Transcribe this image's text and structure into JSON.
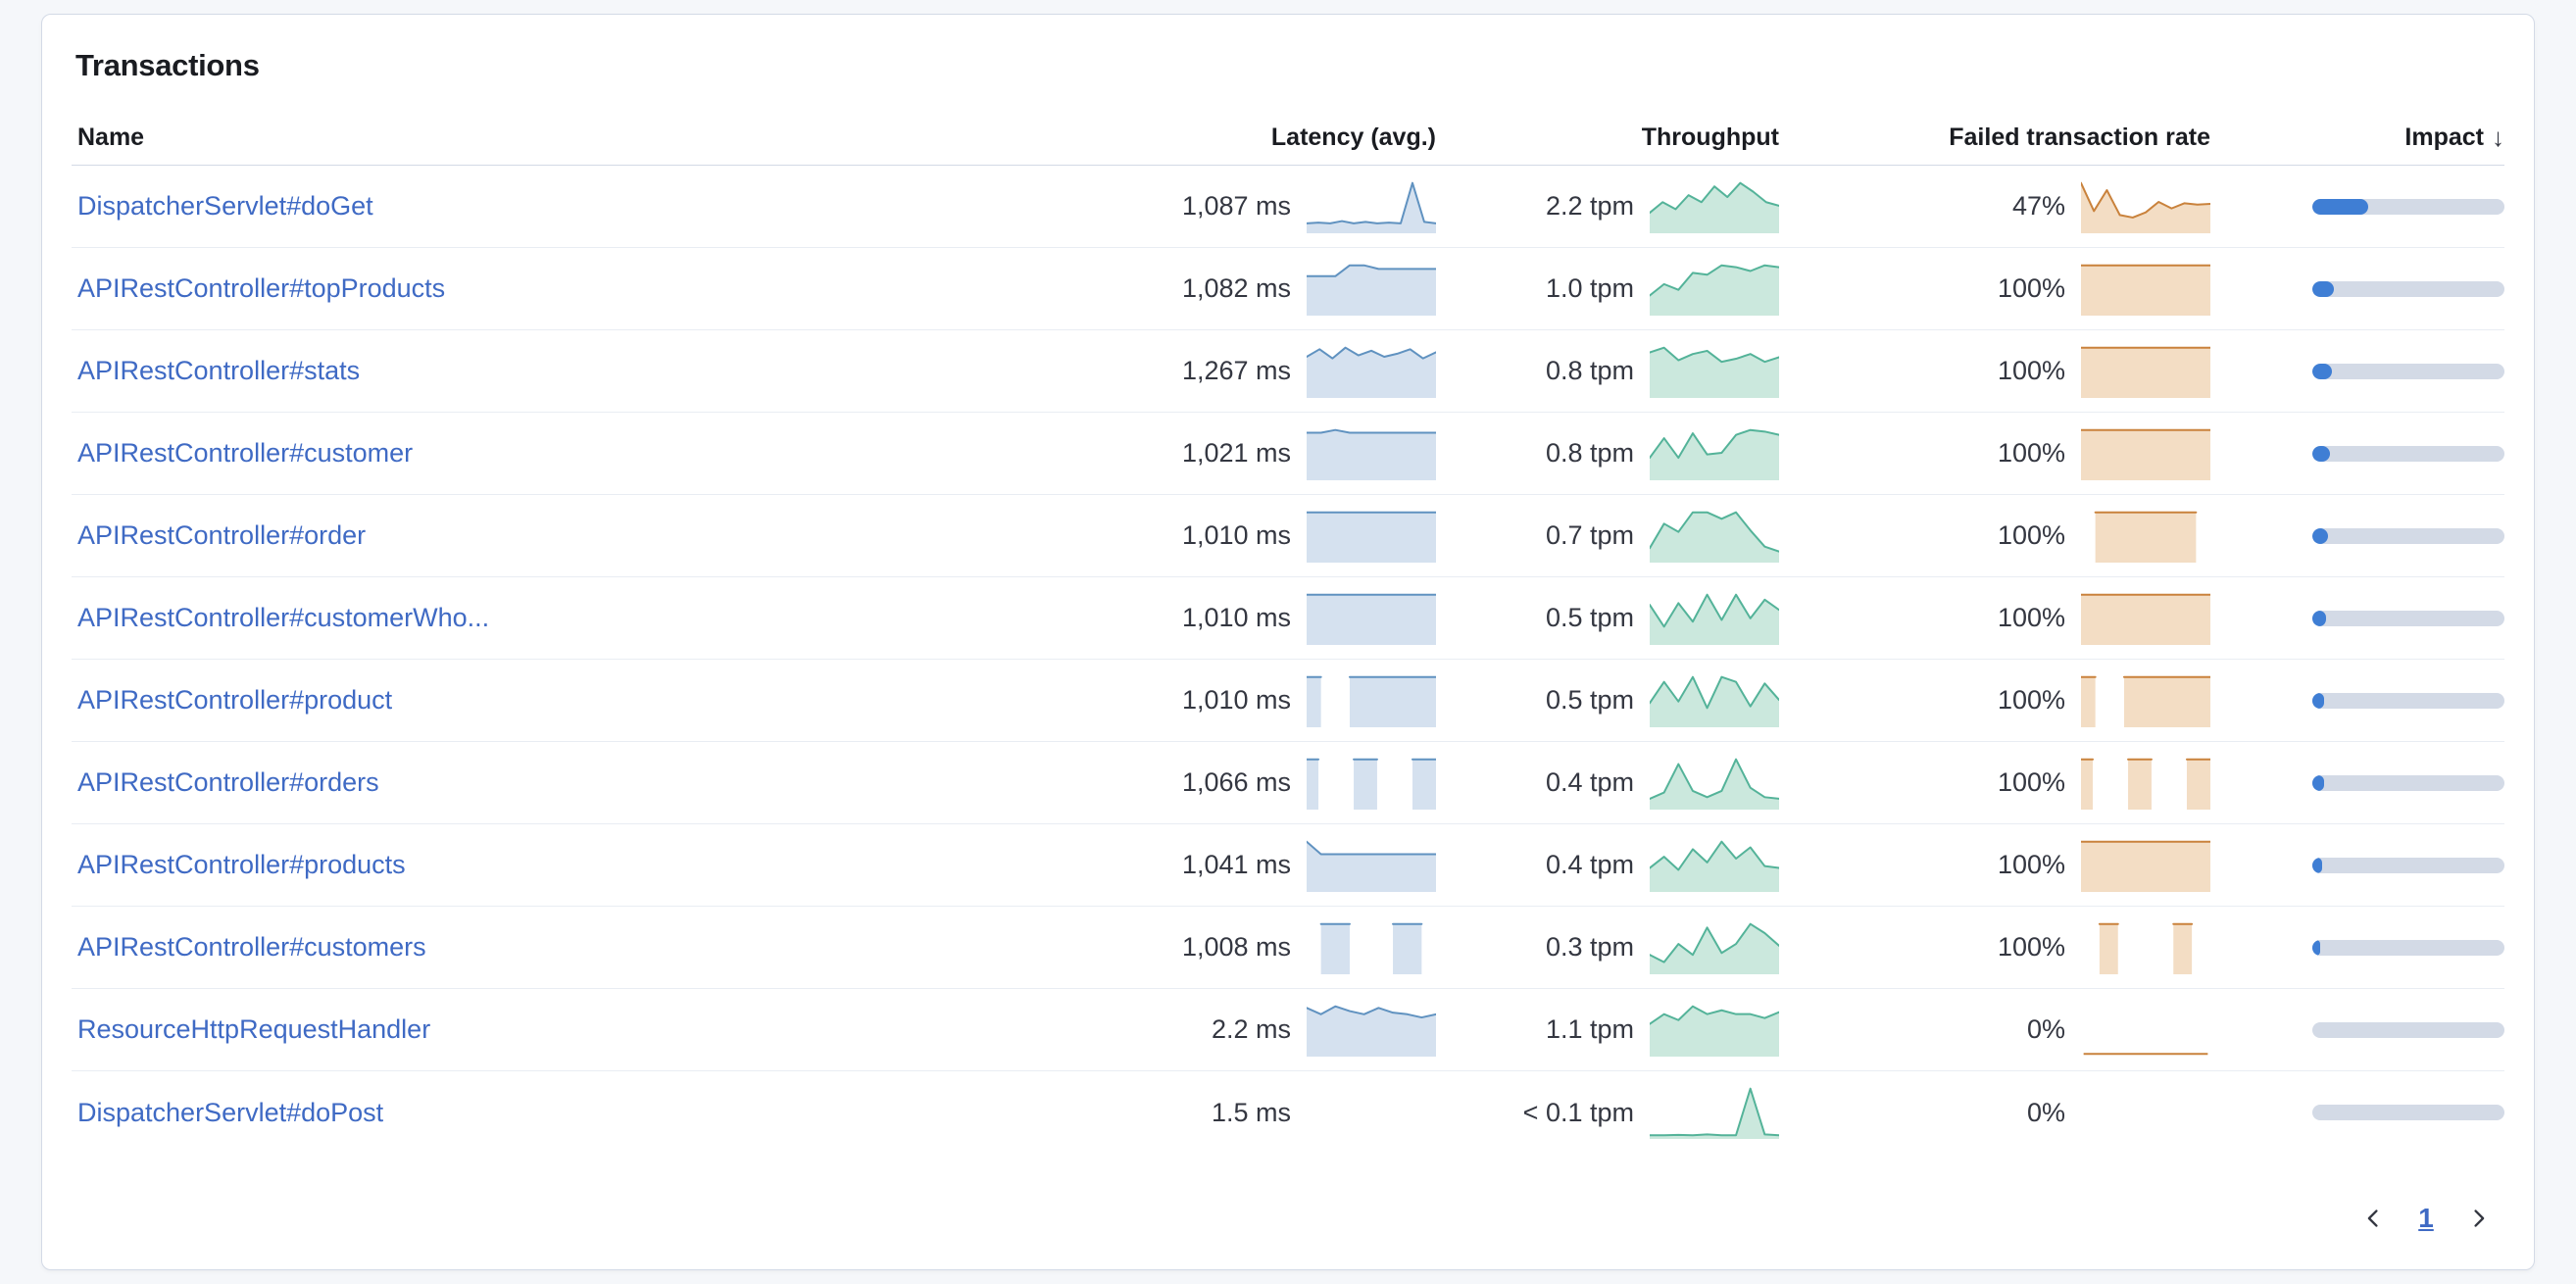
{
  "panel": {
    "title": "Transactions"
  },
  "table": {
    "columns": {
      "name": "Name",
      "latency": "Latency (avg.)",
      "throughput": "Throughput",
      "failed_rate": "Failed transaction rate",
      "impact": "Impact"
    },
    "sort": {
      "column": "impact",
      "direction": "desc",
      "icon": "down-arrow"
    },
    "rows": [
      {
        "name": "DispatcherServlet#doGet",
        "latency": "1,087 ms",
        "throughput": "2.2 tpm",
        "failed_rate": "47%",
        "impact_pct": 29,
        "latency_spark": [
          1.2,
          1.3,
          1.2,
          1.5,
          1.2,
          1.4,
          1.2,
          1.3,
          1.2,
          6.8,
          1.4,
          1.2
        ],
        "throughput_spark": [
          2.2,
          3.4,
          2.6,
          4.2,
          3.4,
          5.2,
          4.0,
          5.6,
          4.6,
          3.4,
          3.0
        ],
        "failed_spark": [
          7.5,
          3.2,
          6.4,
          2.6,
          2.2,
          3.0,
          4.6,
          3.6,
          4.4,
          4.2,
          4.3
        ]
      },
      {
        "name": "APIRestController#topProducts",
        "latency": "1,082 ms",
        "throughput": "1.0 tpm",
        "failed_rate": "100%",
        "impact_pct": 11,
        "latency_spark": [
          4.2,
          4.2,
          4.2,
          5.4,
          5.4,
          5.0,
          5.0,
          5.0,
          5.0,
          5.0
        ],
        "throughput_spark": [
          2.0,
          3.2,
          2.6,
          4.4,
          4.2,
          5.2,
          5.0,
          4.6,
          5.2,
          5.0
        ],
        "failed_spark": [
          5,
          5,
          5,
          5,
          5,
          5,
          5,
          5,
          5,
          5
        ]
      },
      {
        "name": "APIRestController#stats",
        "latency": "1,267 ms",
        "throughput": "0.8 tpm",
        "failed_rate": "100%",
        "impact_pct": 10,
        "latency_spark": [
          5.2,
          6.2,
          5.0,
          6.4,
          5.4,
          6.0,
          5.2,
          5.6,
          6.2,
          5.0,
          5.8
        ],
        "throughput_spark": [
          5.6,
          6.2,
          4.6,
          5.4,
          5.8,
          4.4,
          4.8,
          5.4,
          4.4,
          5.0
        ],
        "failed_spark": [
          5,
          5,
          5,
          5,
          5,
          5,
          5,
          5,
          5,
          5
        ]
      },
      {
        "name": "APIRestController#customer",
        "latency": "1,021 ms",
        "throughput": "0.8 tpm",
        "failed_rate": "100%",
        "impact_pct": 9,
        "latency_spark": [
          5.0,
          5.0,
          5.3,
          5.0,
          5.0,
          5.0,
          5.0,
          5.0,
          5.0,
          5.0
        ],
        "throughput_spark": [
          2.6,
          5.0,
          2.6,
          5.6,
          3.0,
          3.2,
          5.4,
          6.0,
          5.8,
          5.4
        ],
        "failed_spark": [
          5,
          5,
          5,
          5,
          5,
          5,
          5,
          5,
          5,
          5
        ]
      },
      {
        "name": "APIRestController#order",
        "latency": "1,010 ms",
        "throughput": "0.7 tpm",
        "failed_rate": "100%",
        "impact_pct": 8,
        "latency_spark": [
          5,
          5,
          5,
          5,
          5,
          5,
          5,
          5,
          5,
          5
        ],
        "throughput_spark": [
          1.6,
          4.6,
          3.6,
          6.0,
          6.0,
          5.2,
          6.0,
          3.8,
          1.8,
          1.2
        ],
        "failed_spark": [
          null,
          5,
          5,
          5,
          5,
          5,
          5,
          5,
          5,
          null
        ]
      },
      {
        "name": "APIRestController#customerWho...",
        "latency": "1,010 ms",
        "throughput": "0.5 tpm",
        "failed_rate": "100%",
        "impact_pct": 7,
        "latency_spark": [
          5,
          5,
          5,
          5,
          5,
          5,
          5,
          5,
          5,
          5
        ],
        "throughput_spark": [
          4.6,
          2.0,
          4.8,
          2.6,
          5.8,
          2.8,
          5.8,
          3.0,
          5.2,
          4.0
        ],
        "failed_spark": [
          5,
          5,
          5,
          5,
          5,
          5,
          5,
          5,
          5,
          5
        ]
      },
      {
        "name": "APIRestController#product",
        "latency": "1,010 ms",
        "throughput": "0.5 tpm",
        "failed_rate": "100%",
        "impact_pct": 6,
        "latency_spark": [
          5,
          5,
          null,
          5,
          5,
          5,
          5,
          5,
          5,
          5
        ],
        "throughput_spark": [
          2.8,
          5.4,
          3.0,
          6.0,
          2.2,
          6.0,
          5.4,
          2.4,
          5.2,
          3.2
        ],
        "failed_spark": [
          5,
          5,
          null,
          5,
          5,
          5,
          5,
          5,
          5,
          5
        ]
      },
      {
        "name": "APIRestController#orders",
        "latency": "1,066 ms",
        "throughput": "0.4 tpm",
        "failed_rate": "100%",
        "impact_pct": 6,
        "latency_spark": [
          5,
          5,
          null,
          null,
          5,
          5,
          5,
          null,
          null,
          5,
          5,
          5
        ],
        "throughput_spark": [
          1.2,
          2.0,
          5.6,
          2.2,
          1.4,
          2.2,
          6.2,
          2.6,
          1.4,
          1.2
        ],
        "failed_spark": [
          5,
          5,
          null,
          null,
          5,
          5,
          5,
          null,
          null,
          5,
          5,
          5
        ]
      },
      {
        "name": "APIRestController#products",
        "latency": "1,041 ms",
        "throughput": "0.4 tpm",
        "failed_rate": "100%",
        "impact_pct": 5,
        "latency_spark": [
          6.2,
          4.6,
          4.6,
          4.6,
          4.6,
          4.6,
          4.6,
          4.6,
          4.6,
          4.6
        ],
        "throughput_spark": [
          2.4,
          3.6,
          2.2,
          4.4,
          3.0,
          5.2,
          3.4,
          4.6,
          2.6,
          2.4
        ],
        "failed_spark": [
          5,
          5,
          5,
          5,
          5,
          5,
          5,
          5,
          5,
          5
        ]
      },
      {
        "name": "APIRestController#customers",
        "latency": "1,008 ms",
        "throughput": "0.3 tpm",
        "failed_rate": "100%",
        "impact_pct": 4,
        "latency_spark": [
          null,
          5,
          5,
          5,
          null,
          null,
          5,
          5,
          5,
          null
        ],
        "throughput_spark": [
          2.0,
          1.2,
          3.2,
          2.0,
          5.0,
          2.2,
          3.2,
          5.4,
          4.4,
          3.0
        ],
        "failed_spark": [
          null,
          5,
          5,
          null,
          null,
          5,
          5,
          null
        ]
      },
      {
        "name": "ResourceHttpRequestHandler",
        "latency": "2.2 ms",
        "throughput": "1.1 tpm",
        "failed_rate": "0%",
        "impact_pct": 0,
        "latency_spark": [
          6.0,
          5.2,
          6.2,
          5.6,
          5.2,
          6.0,
          5.4,
          5.2,
          4.8,
          5.2
        ],
        "throughput_spark": [
          3.2,
          4.2,
          3.6,
          5.0,
          4.2,
          4.6,
          4.2,
          4.2,
          3.8,
          4.4
        ],
        "failed_spark": [
          0,
          0,
          0,
          0,
          0,
          0
        ]
      },
      {
        "name": "DispatcherServlet#doPost",
        "latency": "1.5 ms",
        "throughput": "< 0.1 tpm",
        "failed_rate": "0%",
        "impact_pct": 0,
        "latency_spark": null,
        "throughput_spark": [
          0.3,
          0.3,
          0.35,
          0.3,
          0.4,
          0.3,
          0.3,
          6.2,
          0.4,
          0.3
        ],
        "failed_spark": null
      }
    ]
  },
  "pagination": {
    "page": "1"
  },
  "colors": {
    "link": "#3f6ac4",
    "latency_stroke": "#6092c0",
    "latency_fill": "#d5e1ef",
    "throughput_stroke": "#54b399",
    "throughput_fill": "#cbe8dd",
    "failed_stroke": "#c9823c",
    "failed_fill": "#f3ddc4",
    "impact_fill": "#3f7ed4",
    "impact_track": "#d3dae6"
  }
}
